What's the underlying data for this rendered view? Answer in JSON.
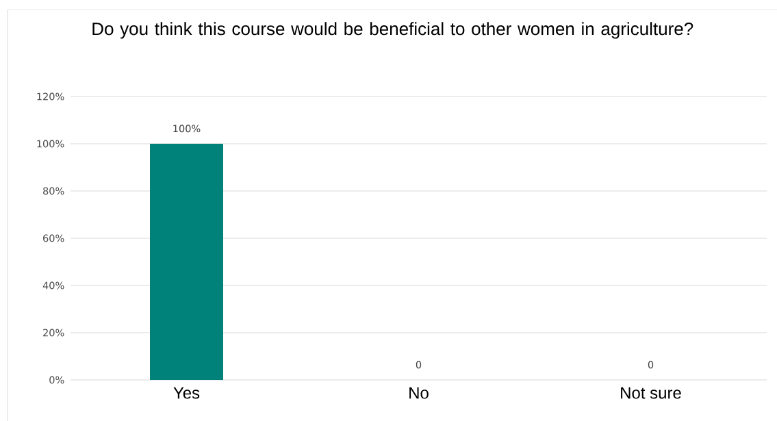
{
  "chart_data": {
    "type": "bar",
    "title": "Do you think this course would be beneficial to other women in agriculture?",
    "categories": [
      "Yes",
      "No",
      "Not sure"
    ],
    "values": [
      100,
      0,
      0
    ],
    "value_labels": [
      "100%",
      "0",
      "0"
    ],
    "color": "#00827a",
    "ylim": [
      0,
      120
    ],
    "yticks": [
      {
        "value": 0,
        "label": "0%"
      },
      {
        "value": 20,
        "label": "20%"
      },
      {
        "value": 40,
        "label": "40%"
      },
      {
        "value": 60,
        "label": "60%"
      },
      {
        "value": 80,
        "label": "80%"
      },
      {
        "value": 100,
        "label": "100%"
      },
      {
        "value": 120,
        "label": "120%"
      }
    ],
    "grid": "y"
  }
}
